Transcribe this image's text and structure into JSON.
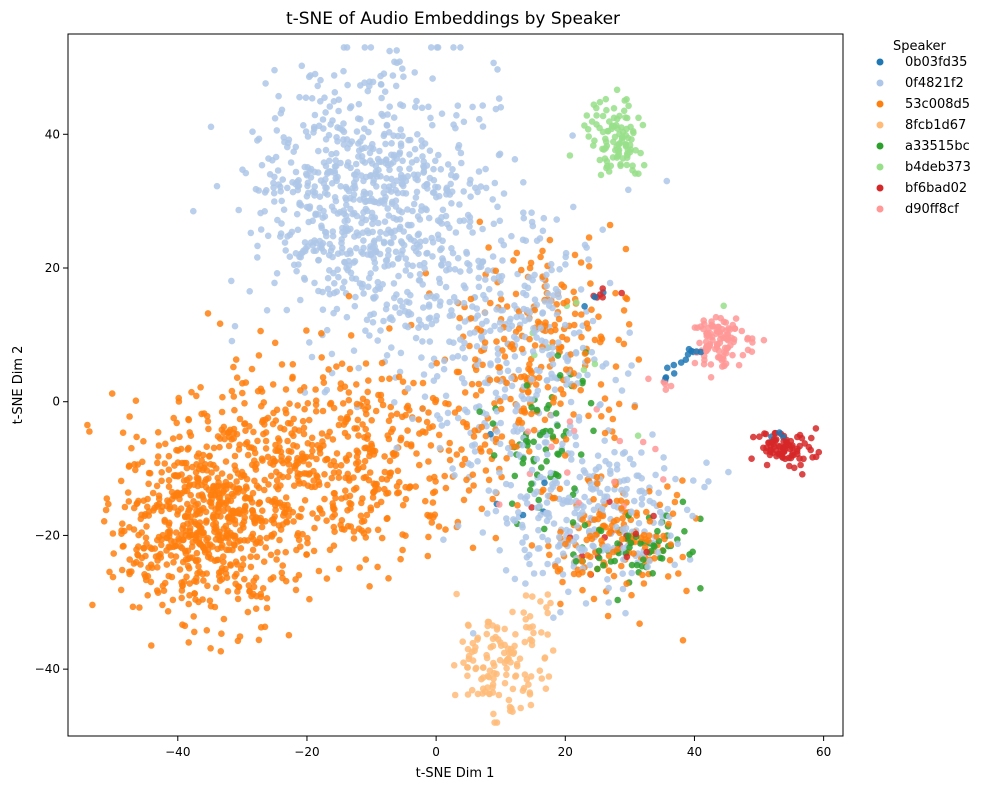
{
  "chart_data": {
    "type": "scatter",
    "title": "t-SNE of Audio Embeddings by Speaker",
    "xlabel": "t-SNE Dim 1",
    "ylabel": "t-SNE Dim 2",
    "xlim": [
      -57,
      63
    ],
    "ylim": [
      -50,
      55
    ],
    "xticks": [
      -40,
      -20,
      0,
      20,
      40,
      60
    ],
    "yticks": [
      -40,
      -20,
      0,
      20,
      40
    ],
    "grid": false,
    "legend": {
      "title": "Speaker",
      "placement": "outside-right-top"
    },
    "series": [
      {
        "name": "0b03fd35",
        "color": "#1f77b4",
        "clusters": [
          {
            "n": 14,
            "points_along": [
              [
                35,
                3
              ],
              [
                38,
                6
              ],
              [
                41,
                8
              ]
            ],
            "spread": 0.4
          },
          {
            "n": 3,
            "center": [
              25,
              15
            ],
            "sx": 1.2,
            "sy": 0.7
          },
          {
            "n": 3,
            "center": [
              52,
              -5
            ],
            "sx": 0.8,
            "sy": 0.4
          },
          {
            "n": 5,
            "center": [
              15,
              -13
            ],
            "sx": 4,
            "sy": 4
          }
        ]
      },
      {
        "name": "0f4821f2",
        "color": "#aec7e8",
        "clusters": [
          {
            "n": 800,
            "center": [
              -10,
              30
            ],
            "sx": 9,
            "sy": 10
          },
          {
            "n": 350,
            "center": [
              12,
              8
            ],
            "sx": 8,
            "sy": 11
          },
          {
            "n": 250,
            "center": [
              24,
              -17
            ],
            "sx": 7,
            "sy": 6
          }
        ]
      },
      {
        "name": "53c008d5",
        "color": "#ff7f0e",
        "clusters": [
          {
            "n": 650,
            "center": [
              -35,
              -18
            ],
            "sx": 7,
            "sy": 7
          },
          {
            "n": 550,
            "center": [
              -15,
              -8
            ],
            "sx": 12,
            "sy": 8
          },
          {
            "n": 220,
            "center": [
              15,
              7
            ],
            "sx": 7,
            "sy": 8
          },
          {
            "n": 150,
            "center": [
              28,
              -21
            ],
            "sx": 6,
            "sy": 5
          }
        ]
      },
      {
        "name": "8fcb1d67",
        "color": "#ffbb78",
        "clusters": [
          {
            "n": 120,
            "center": [
              10,
              -39
            ],
            "sx": 3,
            "sy": 3.5
          },
          {
            "n": 15,
            "center": [
              15,
              -33
            ],
            "sx": 2,
            "sy": 2
          }
        ]
      },
      {
        "name": "a33515bc",
        "color": "#2ca02c",
        "clusters": [
          {
            "n": 70,
            "center": [
              17,
              -7
            ],
            "sx": 5,
            "sy": 6
          },
          {
            "n": 60,
            "center": [
              30,
              -22
            ],
            "sx": 5,
            "sy": 3
          }
        ]
      },
      {
        "name": "b4deb373",
        "color": "#98df8a",
        "clusters": [
          {
            "n": 100,
            "center": [
              28,
              39
            ],
            "sx": 2,
            "sy": 3
          },
          {
            "n": 10,
            "center": [
              20,
              10
            ],
            "sx": 8,
            "sy": 10
          }
        ]
      },
      {
        "name": "bf6bad02",
        "color": "#d62728",
        "clusters": [
          {
            "n": 80,
            "center": [
              54,
              -7
            ],
            "sx": 2.2,
            "sy": 1.3
          },
          {
            "n": 6,
            "center": [
              26,
              16
            ],
            "sx": 1.5,
            "sy": 0.6
          },
          {
            "n": 15,
            "center": [
              27,
              -20
            ],
            "sx": 5,
            "sy": 3
          }
        ]
      },
      {
        "name": "d90ff8cf",
        "color": "#ff9896",
        "clusters": [
          {
            "n": 100,
            "center": [
              44,
              9
            ],
            "sx": 2,
            "sy": 2
          },
          {
            "n": 6,
            "center": [
              35,
              3
            ],
            "sx": 1,
            "sy": 0.6
          },
          {
            "n": 15,
            "center": [
              22,
              -12
            ],
            "sx": 6,
            "sy": 6
          }
        ]
      }
    ]
  }
}
